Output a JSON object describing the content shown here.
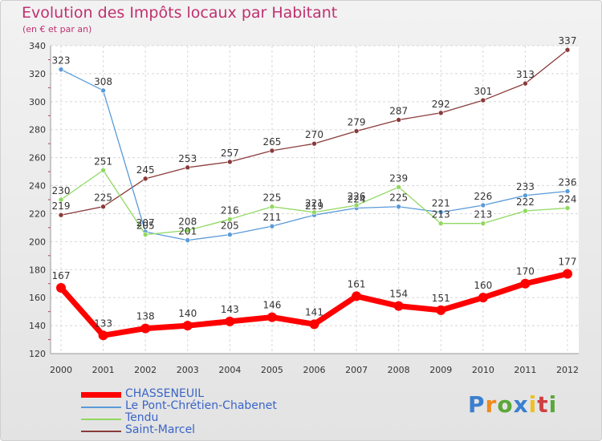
{
  "header": {
    "title": "Evolution des Impôts locaux par Habitant",
    "subtitle": "(en € et par an)"
  },
  "brand": {
    "text": "Proxiti",
    "letter_colors": [
      "#3a7fd0",
      "#f08a1c",
      "#5aa838",
      "#3a7fd0",
      "#f0c020",
      "#d04040",
      "#5aa838"
    ]
  },
  "chart_data": {
    "type": "line",
    "title": "Evolution des Impôts locaux par Habitant",
    "subtitle": "(en € et par an)",
    "xlabel": "",
    "ylabel": "",
    "x": [
      "2000",
      "2001",
      "2002",
      "2003",
      "2004",
      "2005",
      "2006",
      "2007",
      "2008",
      "2009",
      "2010",
      "2011",
      "2012"
    ],
    "ylim": [
      120,
      340
    ],
    "yticks": [
      "120",
      "140",
      "160",
      "180",
      "200",
      "220",
      "240",
      "260",
      "280",
      "300",
      "320",
      "340"
    ],
    "grid": true,
    "legend_position": "bottom-left",
    "series": [
      {
        "name": "CHASSENEUIL",
        "color": "#ff0000",
        "values": [
          167,
          133,
          138,
          140,
          143,
          146,
          141,
          161,
          154,
          151,
          160,
          170,
          177
        ]
      },
      {
        "name": "Le Pont-Chrétien-Chabenet",
        "color": "#5a9ad8",
        "values": [
          323,
          308,
          207,
          201,
          205,
          211,
          219,
          224,
          225,
          221,
          226,
          233,
          236
        ]
      },
      {
        "name": "Tendu",
        "color": "#90d860",
        "values": [
          230,
          251,
          205,
          208,
          216,
          225,
          221,
          226,
          239,
          213,
          213,
          222,
          224
        ]
      },
      {
        "name": "Saint-Marcel",
        "color": "#8a3a3a",
        "values": [
          219,
          225,
          245,
          253,
          257,
          265,
          270,
          279,
          287,
          292,
          301,
          313,
          337
        ]
      }
    ]
  }
}
